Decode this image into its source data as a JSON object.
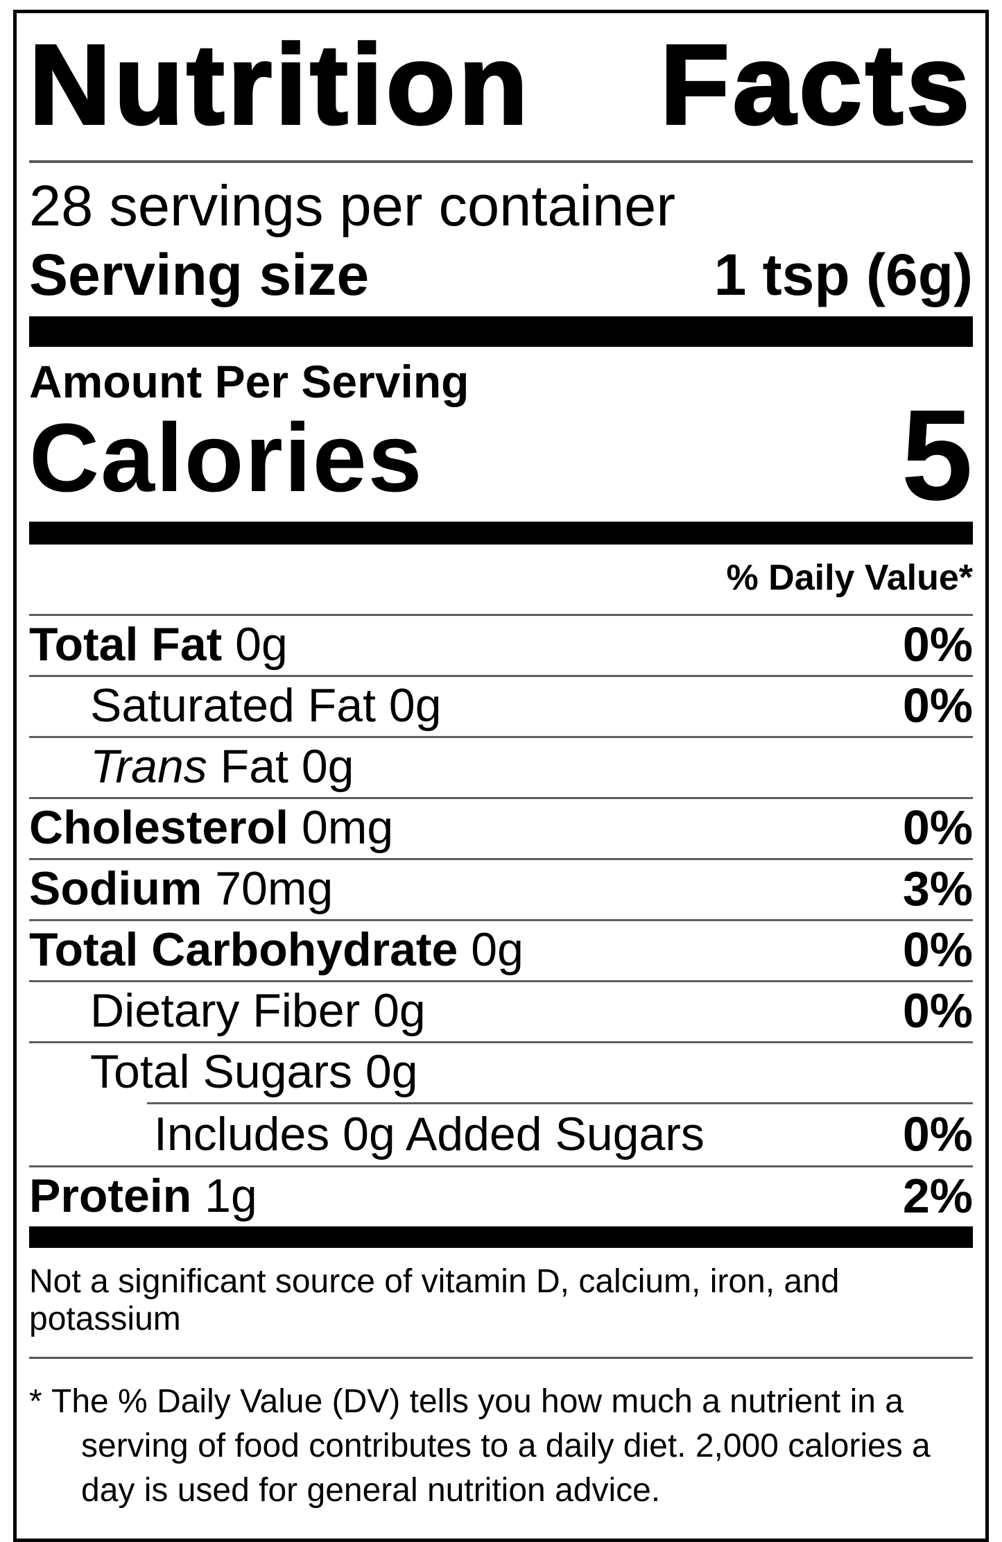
{
  "label": {
    "title": "Nutrition Facts",
    "servings_per_container": "28 servings per container",
    "serving_size": {
      "label": "Serving size",
      "value": "1 tsp (6g)"
    },
    "amount_per_serving": "Amount Per Serving",
    "calories": {
      "label": "Calories",
      "value": "5"
    },
    "daily_value_header": "% Daily Value*",
    "nutrients": [
      {
        "name": "Total Fat",
        "amount": "0g",
        "dv": "0%",
        "emphasis": "bold",
        "indent": 0,
        "partial_divider": false
      },
      {
        "name": "Saturated Fat",
        "amount": "0g",
        "dv": "0%",
        "emphasis": "regular",
        "indent": 1,
        "partial_divider": false
      },
      {
        "name": "Trans",
        "rest": "Fat",
        "amount": "0g",
        "dv": "",
        "emphasis": "italic",
        "indent": 1,
        "partial_divider": false
      },
      {
        "name": "Cholesterol",
        "amount": "0mg",
        "dv": "0%",
        "emphasis": "bold",
        "indent": 0,
        "partial_divider": false
      },
      {
        "name": "Sodium",
        "amount": "70mg",
        "dv": "3%",
        "emphasis": "bold",
        "indent": 0,
        "partial_divider": false
      },
      {
        "name": "Total Carbohydrate",
        "amount": "0g",
        "dv": "0%",
        "emphasis": "bold",
        "indent": 0,
        "partial_divider": false
      },
      {
        "name": "Dietary Fiber",
        "amount": "0g",
        "dv": "0%",
        "emphasis": "regular",
        "indent": 1,
        "partial_divider": false
      },
      {
        "name": "Total Sugars",
        "amount": "0g",
        "dv": "",
        "emphasis": "regular",
        "indent": 1,
        "partial_divider": false
      },
      {
        "name": "Includes 0g Added Sugars",
        "amount": "",
        "dv": "0%",
        "emphasis": "regular",
        "indent": 2,
        "partial_divider": true
      },
      {
        "name": "Protein",
        "amount": "1g",
        "dv": "2%",
        "emphasis": "bold",
        "indent": 0,
        "partial_divider": false
      }
    ],
    "not_significant_note": "Not a significant source of vitamin D, calcium, iron, and potassium",
    "footnote": {
      "marker": "*",
      "text": "The % Daily Value (DV) tells you how much a nutrient in a serving of food contributes to a daily diet. 2,000 calories a day is used for general nutrition advice."
    },
    "colors": {
      "ink": "#000000",
      "hairline": "#5e5e5e",
      "background": "#ffffff"
    }
  }
}
